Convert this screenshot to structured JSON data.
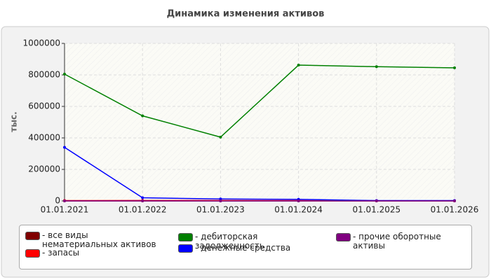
{
  "chart_data": {
    "type": "line",
    "title": "Динамика изменения активов",
    "y_label": "тыс.",
    "categories": [
      "01.01.2021",
      "01.01.2022",
      "01.01.2023",
      "01.01.2024",
      "01.01.2025",
      "01.01.2026"
    ],
    "series": [
      {
        "name": "- все виды нематериальных активов",
        "color": "#800000",
        "values": [
          0,
          0,
          0,
          0,
          0,
          0
        ]
      },
      {
        "name": "- запасы",
        "color": "#ff0000",
        "values": [
          2000,
          3000,
          3000,
          2000,
          1000,
          1000
        ]
      },
      {
        "name": "- дебиторская задолженность",
        "color": "#008000",
        "values": [
          805000,
          540000,
          405000,
          862000,
          852000,
          845000
        ]
      },
      {
        "name": "- денежные средства",
        "color": "#0000ff",
        "values": [
          340000,
          20000,
          12000,
          10000,
          2000,
          2000
        ]
      },
      {
        "name": "- прочие оборотные активы",
        "color": "#800080",
        "values": [
          0,
          0,
          0,
          0,
          0,
          0
        ]
      }
    ],
    "ylim": [
      0,
      1000000
    ],
    "yticks": [
      0,
      200000,
      400000,
      600000,
      800000,
      1000000
    ],
    "grid": true
  }
}
